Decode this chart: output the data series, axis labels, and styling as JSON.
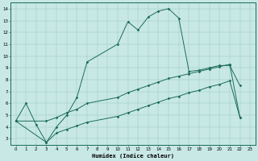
{
  "xlabel": "Humidex (Indice chaleur)",
  "bg_color": "#c8e8e5",
  "line_color": "#1a6b5a",
  "xlim": [
    -0.5,
    23.5
  ],
  "ylim": [
    2.5,
    14.5
  ],
  "xticks": [
    0,
    1,
    2,
    3,
    4,
    5,
    6,
    7,
    8,
    9,
    10,
    11,
    12,
    13,
    14,
    15,
    16,
    17,
    18,
    19,
    20,
    21,
    22,
    23
  ],
  "yticks": [
    3,
    4,
    5,
    6,
    7,
    8,
    9,
    10,
    11,
    12,
    13,
    14
  ],
  "line1_x": [
    0,
    1,
    2,
    3,
    4,
    5,
    6,
    7,
    10,
    11,
    12,
    13,
    14,
    15,
    16,
    17,
    18,
    19,
    20,
    21,
    22
  ],
  "line1_y": [
    4.5,
    6.0,
    4.2,
    2.7,
    4.0,
    5.0,
    6.5,
    9.5,
    11.0,
    12.9,
    12.2,
    13.3,
    13.8,
    14.0,
    13.2,
    8.7,
    8.8,
    9.0,
    9.2,
    9.2,
    7.5
  ],
  "line2_x": [
    0,
    3,
    4,
    5,
    6,
    7,
    10,
    11,
    12,
    13,
    14,
    15,
    16,
    17,
    18,
    19,
    20,
    21,
    22
  ],
  "line2_y": [
    4.5,
    4.5,
    4.8,
    5.2,
    5.5,
    6.0,
    6.5,
    6.9,
    7.2,
    7.5,
    7.8,
    8.1,
    8.3,
    8.5,
    8.7,
    8.9,
    9.1,
    9.3,
    4.8
  ],
  "line3_x": [
    0,
    3,
    4,
    5,
    6,
    7,
    10,
    11,
    12,
    13,
    14,
    15,
    16,
    17,
    18,
    19,
    20,
    21,
    22
  ],
  "line3_y": [
    4.5,
    2.7,
    3.5,
    3.8,
    4.1,
    4.4,
    4.9,
    5.2,
    5.5,
    5.8,
    6.1,
    6.4,
    6.6,
    6.9,
    7.1,
    7.4,
    7.6,
    7.9,
    4.8
  ]
}
